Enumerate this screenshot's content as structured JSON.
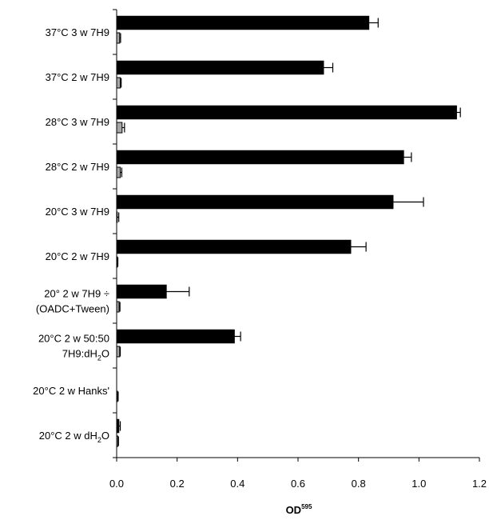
{
  "chart_data": {
    "type": "bar",
    "orientation": "horizontal",
    "xlabel": "OD",
    "xlabel_superscript": "595",
    "xlim": [
      0,
      1.2
    ],
    "x_ticks": [
      "0.0",
      "0.2",
      "0.4",
      "0.6",
      "0.8",
      "1.0",
      "1.2"
    ],
    "grid": false,
    "legend": "none",
    "categories": [
      {
        "lines": [
          [
            {
              "t": "37°C 3 w 7H9"
            }
          ]
        ]
      },
      {
        "lines": [
          [
            {
              "t": "37°C 2 w 7H9"
            }
          ]
        ]
      },
      {
        "lines": [
          [
            {
              "t": "28°C 3 w 7H9"
            }
          ]
        ]
      },
      {
        "lines": [
          [
            {
              "t": "28°C 2 w 7H9"
            }
          ]
        ]
      },
      {
        "lines": [
          [
            {
              "t": "20°C 3 w 7H9"
            }
          ]
        ]
      },
      {
        "lines": [
          [
            {
              "t": "20°C 2 w 7H9"
            }
          ]
        ]
      },
      {
        "lines": [
          [
            {
              "t": "20° 2 w 7H9 ÷"
            }
          ],
          [
            {
              "t": "(OADC+Tween)"
            }
          ]
        ]
      },
      {
        "lines": [
          [
            {
              "t": "20°C 2 w 50:50"
            }
          ],
          [
            {
              "t": "7H9:dH"
            },
            {
              "t": "2",
              "sub": true
            },
            {
              "t": "O"
            }
          ]
        ]
      },
      {
        "lines": [
          [
            {
              "t": "20°C 2 w Hanks'"
            }
          ]
        ]
      },
      {
        "lines": [
          [
            {
              "t": "20°C 2 w dH"
            },
            {
              "t": "2",
              "sub": true
            },
            {
              "t": "O"
            }
          ]
        ]
      }
    ],
    "series": [
      {
        "color": "#000000",
        "values": [
          0.835,
          0.685,
          1.125,
          0.95,
          0.915,
          0.775,
          0.165,
          0.39,
          0.0,
          0.008
        ],
        "errors": [
          0.03,
          0.03,
          0.012,
          0.025,
          0.1,
          0.05,
          0.075,
          0.02,
          0.0,
          0.004
        ]
      },
      {
        "color": "#a6a6a6",
        "values": [
          0.01,
          0.012,
          0.018,
          0.012,
          0.002,
          0.002,
          0.008,
          0.01,
          0.003,
          0.004
        ],
        "errors": [
          0.003,
          0.003,
          0.008,
          0.005,
          0.005,
          0.002,
          0.003,
          0.002,
          0.002,
          0.002
        ]
      }
    ]
  }
}
